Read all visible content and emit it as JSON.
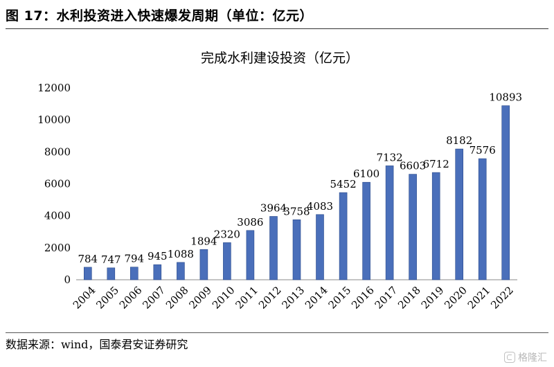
{
  "figure": {
    "title": "图 17：水利投资进入快速爆发周期（单位：亿元）",
    "source": "数据来源：wind，国泰君安证券研究",
    "watermark": "格隆汇"
  },
  "chart_data": {
    "type": "bar",
    "title": "完成水利建设投资（亿元）",
    "xlabel": "",
    "ylabel": "",
    "categories": [
      "2004",
      "2005",
      "2006",
      "2007",
      "2008",
      "2009",
      "2010",
      "2011",
      "2012",
      "2013",
      "2014",
      "2015",
      "2016",
      "2017",
      "2018",
      "2019",
      "2020",
      "2021",
      "2022"
    ],
    "values": [
      784,
      747,
      794,
      945,
      1088,
      1894,
      2320,
      3086,
      3964,
      3758,
      4083,
      5452,
      6100,
      7132,
      6603,
      6712,
      8182,
      7576,
      10893
    ],
    "ylim": [
      0,
      12000
    ],
    "yticks": [
      0,
      2000,
      4000,
      6000,
      8000,
      10000,
      12000
    ],
    "data_labels": true,
    "grid": false,
    "legend": false,
    "colors": {
      "bar_fill": "#4a6fba",
      "bar_stroke": "#2a4a8a",
      "axis": "#888888"
    }
  }
}
